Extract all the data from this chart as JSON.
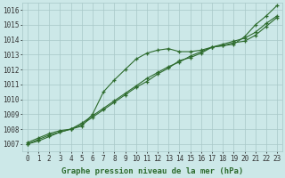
{
  "x": [
    0,
    1,
    2,
    3,
    4,
    5,
    6,
    7,
    8,
    9,
    10,
    11,
    12,
    13,
    14,
    15,
    16,
    17,
    18,
    19,
    20,
    21,
    22,
    23
  ],
  "series1": [
    1007.0,
    1007.3,
    1007.6,
    1007.8,
    1008.0,
    1008.2,
    1009.0,
    1010.5,
    1011.3,
    1012.0,
    1012.7,
    1013.1,
    1013.3,
    1013.4,
    1013.2,
    1013.2,
    1013.3,
    1013.5,
    1013.6,
    1013.7,
    1014.2,
    1015.0,
    1015.6,
    1016.3
  ],
  "series2": [
    1007.0,
    1007.2,
    1007.5,
    1007.8,
    1008.0,
    1008.3,
    1008.8,
    1009.3,
    1009.8,
    1010.3,
    1010.8,
    1011.2,
    1011.7,
    1012.1,
    1012.6,
    1012.8,
    1013.1,
    1013.5,
    1013.7,
    1013.9,
    1014.1,
    1014.5,
    1015.1,
    1015.6
  ],
  "series3": [
    1007.1,
    1007.4,
    1007.7,
    1007.9,
    1008.0,
    1008.4,
    1008.9,
    1009.4,
    1009.9,
    1010.4,
    1010.9,
    1011.4,
    1011.8,
    1012.2,
    1012.5,
    1012.9,
    1013.2,
    1013.5,
    1013.6,
    1013.8,
    1013.9,
    1014.3,
    1014.9,
    1015.5
  ],
  "bg_color": "#cce8e8",
  "grid_color": "#a8c8c8",
  "line_color": "#2d6b2d",
  "marker": "+",
  "xlabel": "Graphe pression niveau de la mer (hPa)",
  "ylim": [
    1006.5,
    1016.5
  ],
  "yticks": [
    1007,
    1008,
    1009,
    1010,
    1011,
    1012,
    1013,
    1014,
    1015,
    1016
  ],
  "xticks": [
    0,
    1,
    2,
    3,
    4,
    5,
    6,
    7,
    8,
    9,
    10,
    11,
    12,
    13,
    14,
    15,
    16,
    17,
    18,
    19,
    20,
    21,
    22,
    23
  ],
  "tick_fontsize": 5.5,
  "label_fontsize": 6.5
}
